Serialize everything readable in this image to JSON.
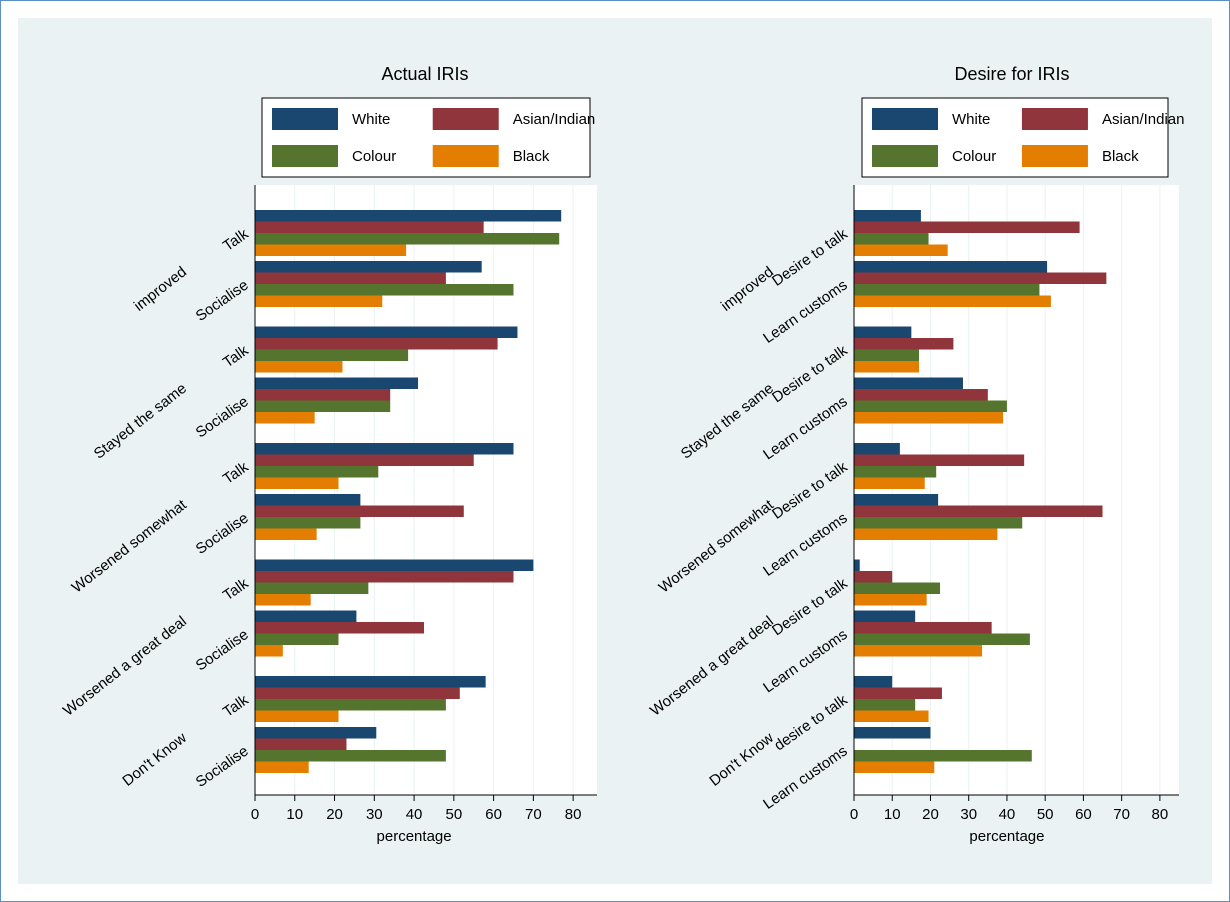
{
  "chart_data": [
    {
      "type": "bar",
      "orientation": "horizontal",
      "title": "Actual IRIs",
      "xlabel": "percentage",
      "groups": [
        "improved",
        "Stayed the same",
        "Worsened somewhat",
        "Worsened a great deal",
        "Don't Know"
      ],
      "categories": [
        "Talk",
        "Socialise",
        "Talk",
        "Socialise",
        "Talk",
        "Socialise",
        "Talk",
        "Socialise",
        "Talk",
        "Socialise"
      ],
      "series": [
        {
          "name": "White",
          "color": "#1a476f",
          "values": [
            77,
            57,
            66,
            41,
            65,
            26.5,
            70,
            25.5,
            58,
            30.5
          ]
        },
        {
          "name": "Asian/Indian",
          "color": "#90353b",
          "values": [
            57.5,
            48,
            61,
            34,
            55,
            52.5,
            65,
            42.5,
            51.5,
            23
          ]
        },
        {
          "name": "Colour",
          "color": "#55752f",
          "values": [
            76.5,
            65,
            38.5,
            34,
            31,
            26.5,
            28.5,
            21,
            48,
            48
          ]
        },
        {
          "name": "Black",
          "color": "#e37e00",
          "values": [
            38,
            32,
            22,
            15,
            21,
            15.5,
            14,
            7,
            21,
            13.5
          ]
        }
      ],
      "xlim": [
        0,
        86
      ],
      "xticks": [
        0,
        10,
        20,
        30,
        40,
        50,
        60,
        70,
        80
      ],
      "grid": true,
      "legend": "top"
    },
    {
      "type": "bar",
      "orientation": "horizontal",
      "title": "Desire for IRIs",
      "xlabel": "percentage",
      "groups": [
        "improved",
        "Stayed the same",
        "Worsened somewhat",
        "Worsened a great deal",
        "Don't Know"
      ],
      "categories": [
        "Desire to talk",
        "Learn customs",
        "Desire to talk",
        "Learn customs",
        "Desire to talk",
        "Learn customs",
        "Desire to talk",
        "Learn customs",
        "desire to talk",
        "Learn customs"
      ],
      "series": [
        {
          "name": "White",
          "color": "#1a476f",
          "values": [
            17.5,
            50.5,
            15,
            28.5,
            12,
            22,
            1.5,
            16,
            10,
            20
          ]
        },
        {
          "name": "Asian/Indian",
          "color": "#90353b",
          "values": [
            59,
            66,
            26,
            35,
            44.5,
            65,
            10,
            36,
            23,
            null
          ]
        },
        {
          "name": "Colour",
          "color": "#55752f",
          "values": [
            19.5,
            48.5,
            17,
            40,
            21.5,
            44,
            22.5,
            46,
            16,
            46.5
          ]
        },
        {
          "name": "Black",
          "color": "#e37e00",
          "values": [
            24.5,
            51.5,
            17,
            39,
            18.5,
            37.5,
            19,
            33.5,
            19.5,
            21
          ]
        }
      ],
      "xlim": [
        0,
        85
      ],
      "xticks": [
        0,
        10,
        20,
        30,
        40,
        50,
        60,
        70,
        80
      ],
      "grid": true,
      "legend": "top"
    }
  ]
}
